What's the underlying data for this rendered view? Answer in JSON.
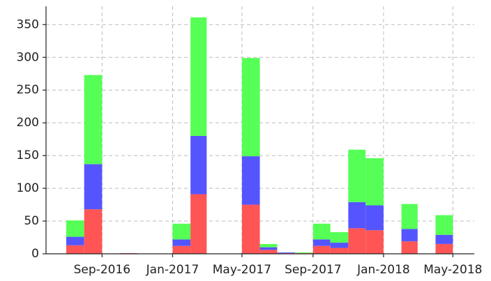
{
  "chart_data": {
    "type": "bar",
    "stacked": true,
    "x": [
      "2016-07-01",
      "2016-08-01",
      "2016-09-01",
      "2016-10-01",
      "2016-11-01",
      "2016-12-01",
      "2017-01-01",
      "2017-02-01",
      "2017-03-01",
      "2017-04-01",
      "2017-05-01",
      "2017-06-01",
      "2017-07-01",
      "2017-08-01",
      "2017-09-01",
      "2017-10-01",
      "2017-11-01",
      "2017-12-01",
      "2018-01-01",
      "2018-02-01",
      "2018-03-01",
      "2018-04-01"
    ],
    "series": [
      {
        "color": "#ff5555",
        "values": [
          13,
          68,
          0,
          1,
          0,
          0,
          12,
          91,
          0,
          0,
          75,
          6,
          1,
          1,
          12,
          9,
          39,
          36,
          0,
          19,
          0,
          15
        ]
      },
      {
        "color": "#5555ff",
        "values": [
          13,
          69,
          0,
          0,
          0,
          0,
          10,
          89,
          0,
          0,
          74,
          4,
          1,
          0,
          10,
          8,
          40,
          38,
          0,
          19,
          0,
          14
        ]
      },
      {
        "color": "#55ff55",
        "values": [
          25,
          136,
          0,
          0,
          0,
          0,
          24,
          181,
          0,
          0,
          150,
          5,
          0,
          1,
          24,
          16,
          80,
          72,
          0,
          38,
          0,
          30
        ]
      }
    ],
    "xlim": [
      "2016-05-27",
      "2018-06-07"
    ],
    "xticks": [
      {
        "value": "2016-09-01",
        "label": "Sep-2016"
      },
      {
        "value": "2017-01-01",
        "label": "Jan-2017"
      },
      {
        "value": "2017-05-01",
        "label": "May-2017"
      },
      {
        "value": "2017-09-01",
        "label": "Sep-2017"
      },
      {
        "value": "2018-01-01",
        "label": "Jan-2018"
      },
      {
        "value": "2018-05-01",
        "label": "May-2018"
      }
    ],
    "ylim": [
      0,
      378
    ],
    "yticks": [
      0,
      50,
      100,
      150,
      200,
      250,
      300,
      350
    ],
    "grid": true
  }
}
